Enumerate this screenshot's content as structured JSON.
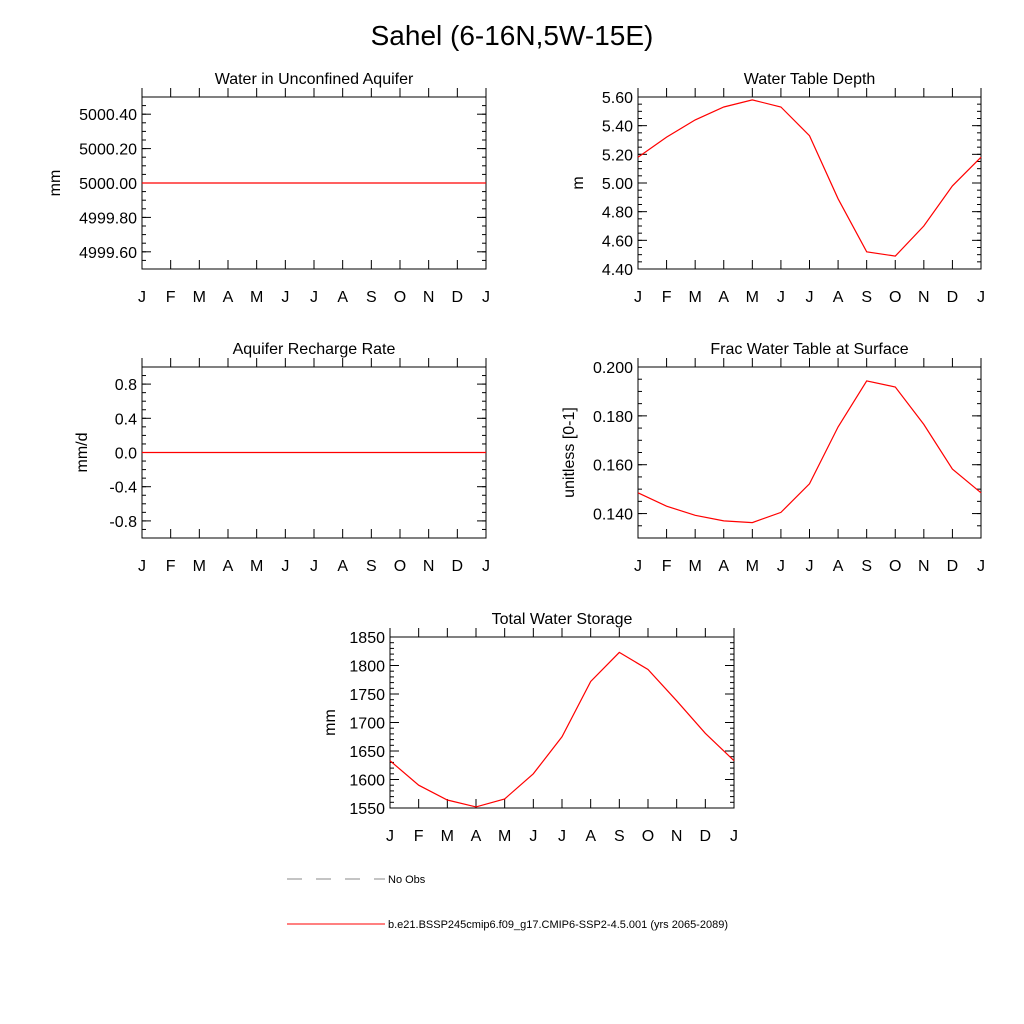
{
  "page": {
    "title": "Sahel (6-16N,5W-15E)"
  },
  "months": [
    "J",
    "F",
    "M",
    "A",
    "M",
    "J",
    "J",
    "A",
    "S",
    "O",
    "N",
    "D",
    "J"
  ],
  "legend": {
    "items": [
      {
        "label": "No Obs",
        "style": "dashed",
        "color": "#888888"
      },
      {
        "label": "b.e21.BSSP245cmip6.f09_g17.CMIP6-SSP2-4.5.001 (yrs 2065-2089)",
        "style": "solid",
        "color": "#ff0000"
      }
    ]
  },
  "chart_data": [
    {
      "type": "line",
      "title": "Water in Unconfined Aquifer",
      "ylabel": "mm",
      "xlabel": "",
      "ylim": [
        4999.5,
        5000.5
      ],
      "yticks": [
        4999.6,
        4999.8,
        5000.0,
        5000.2,
        5000.4
      ],
      "ytick_labels": [
        "4999.60",
        "4999.80",
        "5000.00",
        "5000.20",
        "5000.40"
      ],
      "minor_step": 0.05,
      "series": [
        {
          "values": [
            5000.0,
            5000.0,
            5000.0,
            5000.0,
            5000.0,
            5000.0,
            5000.0,
            5000.0,
            5000.0,
            5000.0,
            5000.0,
            5000.0,
            5000.0
          ],
          "color": "#ff0000"
        }
      ]
    },
    {
      "type": "line",
      "title": "Water Table Depth",
      "ylabel": "m",
      "xlabel": "",
      "ylim": [
        4.4,
        5.6
      ],
      "yticks": [
        4.4,
        4.6,
        4.8,
        5.0,
        5.2,
        5.4,
        5.6
      ],
      "ytick_labels": [
        "4.40",
        "4.60",
        "4.80",
        "5.00",
        "5.20",
        "5.40",
        "5.60"
      ],
      "minor_step": 0.05,
      "series": [
        {
          "values": [
            5.18,
            5.32,
            5.44,
            5.53,
            5.58,
            5.53,
            5.33,
            4.89,
            4.52,
            4.49,
            4.7,
            4.98,
            5.18
          ],
          "color": "#ff0000"
        }
      ]
    },
    {
      "type": "line",
      "title": "Aquifer Recharge Rate",
      "ylabel": "mm/d",
      "xlabel": "",
      "ylim": [
        -1.0,
        1.0
      ],
      "yticks": [
        -0.8,
        -0.4,
        0.0,
        0.4,
        0.8
      ],
      "ytick_labels": [
        "-0.8",
        "-0.4",
        "0.0",
        "0.4",
        "0.8"
      ],
      "minor_step": 0.1,
      "series": [
        {
          "values": [
            0,
            0,
            0,
            0,
            0,
            0,
            0,
            0,
            0,
            0,
            0,
            0,
            0
          ],
          "color": "#ff0000"
        }
      ]
    },
    {
      "type": "line",
      "title": "Frac Water Table at Surface",
      "ylabel": "unitless [0-1]",
      "xlabel": "",
      "ylim": [
        0.13,
        0.2
      ],
      "yticks": [
        0.14,
        0.16,
        0.18,
        0.2
      ],
      "ytick_labels": [
        "0.140",
        "0.160",
        "0.180",
        "0.200"
      ],
      "minor_step": 0.005,
      "series": [
        {
          "values": [
            0.1485,
            0.143,
            0.1393,
            0.137,
            0.1363,
            0.1405,
            0.1522,
            0.1755,
            0.1943,
            0.1918,
            0.1765,
            0.1582,
            0.1485
          ],
          "color": "#ff0000"
        }
      ]
    },
    {
      "type": "line",
      "title": "Total Water Storage",
      "ylabel": "mm",
      "xlabel": "",
      "ylim": [
        1550,
        1850
      ],
      "yticks": [
        1550,
        1600,
        1650,
        1700,
        1750,
        1800,
        1850
      ],
      "ytick_labels": [
        "1550",
        "1600",
        "1650",
        "1700",
        "1750",
        "1800",
        "1850"
      ],
      "minor_step": 10,
      "series": [
        {
          "values": [
            1633,
            1590,
            1564,
            1552,
            1566,
            1610,
            1675,
            1772,
            1823,
            1793,
            1738,
            1681,
            1633
          ],
          "color": "#ff0000"
        }
      ]
    }
  ]
}
